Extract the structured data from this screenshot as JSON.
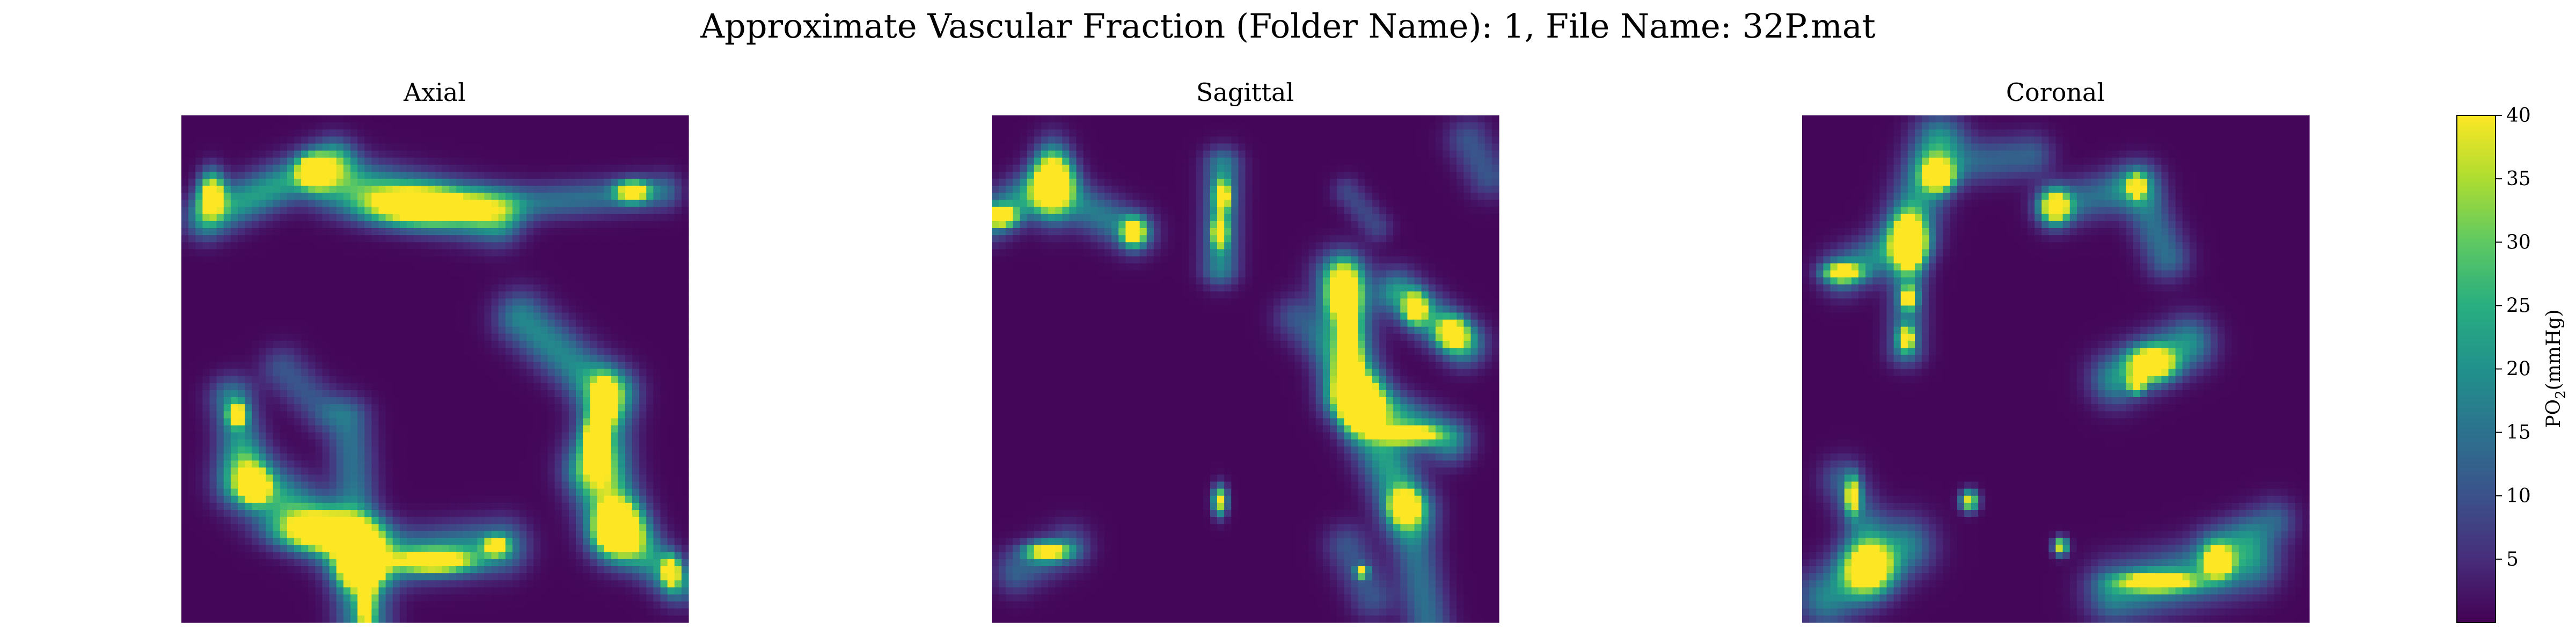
{
  "chart_data": {
    "type": "heatmap",
    "title": "Approximate Vascular Fraction (Folder Name): 1, File Name: 32P.mat",
    "colormap": "viridis",
    "colorbar": {
      "label": "PO",
      "label_sub": "2",
      "label_unit": "(mmHg)",
      "vmin": 0,
      "vmax": 40,
      "ticks": [
        5,
        10,
        15,
        20,
        25,
        30,
        35,
        40
      ]
    },
    "panels": [
      {
        "title": "Axial",
        "grid": 72,
        "blobs": [
          {
            "x": 0.06,
            "y": 0.155,
            "sx": 0.018,
            "sy": 0.03,
            "v": 44
          },
          {
            "x": 0.26,
            "y": 0.11,
            "sx": 0.02,
            "sy": 0.02,
            "v": 44
          },
          {
            "x": 0.47,
            "y": 0.18,
            "sx": 0.075,
            "sy": 0.025,
            "v": 46
          },
          {
            "x": 0.89,
            "y": 0.15,
            "sx": 0.022,
            "sy": 0.014,
            "v": 42
          },
          {
            "x": 0.11,
            "y": 0.59,
            "sx": 0.012,
            "sy": 0.015,
            "v": 42
          },
          {
            "x": 0.145,
            "y": 0.73,
            "sx": 0.018,
            "sy": 0.02,
            "v": 40
          },
          {
            "x": 0.28,
            "y": 0.82,
            "sx": 0.06,
            "sy": 0.025,
            "v": 46
          },
          {
            "x": 0.355,
            "y": 0.9,
            "sx": 0.025,
            "sy": 0.02,
            "v": 38
          },
          {
            "x": 0.365,
            "y": 0.955,
            "sx": 0.01,
            "sy": 0.04,
            "v": 40
          },
          {
            "x": 0.5,
            "y": 0.88,
            "sx": 0.05,
            "sy": 0.015,
            "v": 40
          },
          {
            "x": 0.62,
            "y": 0.85,
            "sx": 0.015,
            "sy": 0.012,
            "v": 40
          },
          {
            "x": 0.835,
            "y": 0.57,
            "sx": 0.015,
            "sy": 0.03,
            "v": 42
          },
          {
            "x": 0.815,
            "y": 0.64,
            "sx": 0.015,
            "sy": 0.03,
            "v": 42
          },
          {
            "x": 0.86,
            "y": 0.81,
            "sx": 0.03,
            "sy": 0.035,
            "v": 48
          },
          {
            "x": 0.965,
            "y": 0.9,
            "sx": 0.012,
            "sy": 0.02,
            "v": 40
          }
        ],
        "ridges": [
          {
            "x1": 0.05,
            "y1": 0.2,
            "x2": 0.3,
            "y2": 0.09,
            "w": 0.03,
            "v": 22
          },
          {
            "x1": 0.3,
            "y1": 0.13,
            "x2": 0.62,
            "y2": 0.2,
            "w": 0.035,
            "v": 24
          },
          {
            "x1": 0.6,
            "y1": 0.18,
            "x2": 0.95,
            "y2": 0.15,
            "w": 0.025,
            "v": 14
          },
          {
            "x1": 0.1,
            "y1": 0.56,
            "x2": 0.13,
            "y2": 0.72,
            "w": 0.03,
            "v": 18
          },
          {
            "x1": 0.13,
            "y1": 0.72,
            "x2": 0.35,
            "y2": 0.86,
            "w": 0.04,
            "v": 24
          },
          {
            "x1": 0.35,
            "y1": 0.86,
            "x2": 0.36,
            "y2": 1.0,
            "w": 0.035,
            "v": 22
          },
          {
            "x1": 0.36,
            "y1": 0.88,
            "x2": 0.63,
            "y2": 0.85,
            "w": 0.035,
            "v": 20
          },
          {
            "x1": 0.33,
            "y1": 0.6,
            "x2": 0.35,
            "y2": 0.85,
            "w": 0.03,
            "v": 14
          },
          {
            "x1": 0.67,
            "y1": 0.4,
            "x2": 0.84,
            "y2": 0.55,
            "w": 0.035,
            "v": 18
          },
          {
            "x1": 0.84,
            "y1": 0.55,
            "x2": 0.82,
            "y2": 0.7,
            "w": 0.035,
            "v": 22
          },
          {
            "x1": 0.82,
            "y1": 0.7,
            "x2": 0.86,
            "y2": 0.82,
            "w": 0.04,
            "v": 22
          },
          {
            "x1": 0.86,
            "y1": 0.82,
            "x2": 0.98,
            "y2": 0.92,
            "w": 0.03,
            "v": 20
          },
          {
            "x1": 0.2,
            "y1": 0.5,
            "x2": 0.28,
            "y2": 0.58,
            "w": 0.03,
            "v": 10
          }
        ]
      },
      {
        "title": "Sagittal",
        "grid": 72,
        "blobs": [
          {
            "x": 0.12,
            "y": 0.13,
            "sx": 0.025,
            "sy": 0.045,
            "v": 46
          },
          {
            "x": 0.02,
            "y": 0.2,
            "sx": 0.02,
            "sy": 0.013,
            "v": 42
          },
          {
            "x": 0.28,
            "y": 0.23,
            "sx": 0.016,
            "sy": 0.018,
            "v": 42
          },
          {
            "x": 0.455,
            "y": 0.16,
            "sx": 0.01,
            "sy": 0.02,
            "v": 40
          },
          {
            "x": 0.45,
            "y": 0.23,
            "sx": 0.01,
            "sy": 0.02,
            "v": 40
          },
          {
            "x": 0.695,
            "y": 0.35,
            "sx": 0.022,
            "sy": 0.035,
            "v": 46
          },
          {
            "x": 0.705,
            "y": 0.49,
            "sx": 0.014,
            "sy": 0.06,
            "v": 46
          },
          {
            "x": 0.73,
            "y": 0.58,
            "sx": 0.022,
            "sy": 0.03,
            "v": 44
          },
          {
            "x": 0.82,
            "y": 0.63,
            "sx": 0.04,
            "sy": 0.012,
            "v": 42
          },
          {
            "x": 0.835,
            "y": 0.38,
            "sx": 0.015,
            "sy": 0.02,
            "v": 40
          },
          {
            "x": 0.91,
            "y": 0.43,
            "sx": 0.02,
            "sy": 0.02,
            "v": 42
          },
          {
            "x": 0.45,
            "y": 0.76,
            "sx": 0.01,
            "sy": 0.02,
            "v": 40
          },
          {
            "x": 0.815,
            "y": 0.77,
            "sx": 0.018,
            "sy": 0.02,
            "v": 42
          },
          {
            "x": 0.11,
            "y": 0.86,
            "sx": 0.03,
            "sy": 0.012,
            "v": 40
          },
          {
            "x": 0.73,
            "y": 0.9,
            "sx": 0.008,
            "sy": 0.008,
            "v": 40
          }
        ],
        "ridges": [
          {
            "x1": 0.0,
            "y1": 0.2,
            "x2": 0.12,
            "y2": 0.13,
            "w": 0.03,
            "v": 20
          },
          {
            "x1": 0.12,
            "y1": 0.15,
            "x2": 0.28,
            "y2": 0.23,
            "w": 0.03,
            "v": 16
          },
          {
            "x1": 0.455,
            "y1": 0.1,
            "x2": 0.45,
            "y2": 0.3,
            "w": 0.025,
            "v": 18
          },
          {
            "x1": 0.7,
            "y1": 0.15,
            "x2": 0.76,
            "y2": 0.22,
            "w": 0.02,
            "v": 8
          },
          {
            "x1": 0.69,
            "y1": 0.32,
            "x2": 0.71,
            "y2": 0.55,
            "w": 0.035,
            "v": 24
          },
          {
            "x1": 0.71,
            "y1": 0.55,
            "x2": 0.9,
            "y2": 0.64,
            "w": 0.03,
            "v": 20
          },
          {
            "x1": 0.72,
            "y1": 0.55,
            "x2": 0.82,
            "y2": 0.78,
            "w": 0.035,
            "v": 22
          },
          {
            "x1": 0.82,
            "y1": 0.78,
            "x2": 0.86,
            "y2": 1.0,
            "w": 0.03,
            "v": 14
          },
          {
            "x1": 0.8,
            "y1": 0.35,
            "x2": 0.93,
            "y2": 0.45,
            "w": 0.03,
            "v": 22
          },
          {
            "x1": 0.6,
            "y1": 0.4,
            "x2": 0.68,
            "y2": 0.48,
            "w": 0.03,
            "v": 10
          },
          {
            "x1": 0.7,
            "y1": 0.85,
            "x2": 0.75,
            "y2": 0.95,
            "w": 0.03,
            "v": 10
          },
          {
            "x1": 0.05,
            "y1": 0.9,
            "x2": 0.15,
            "y2": 0.85,
            "w": 0.03,
            "v": 12
          },
          {
            "x1": 0.94,
            "y1": 0.05,
            "x2": 0.98,
            "y2": 0.12,
            "w": 0.03,
            "v": 10
          }
        ]
      },
      {
        "title": "Coronal",
        "grid": 72,
        "blobs": [
          {
            "x": 0.27,
            "y": 0.12,
            "sx": 0.02,
            "sy": 0.02,
            "v": 42
          },
          {
            "x": 0.21,
            "y": 0.25,
            "sx": 0.02,
            "sy": 0.035,
            "v": 46
          },
          {
            "x": 0.08,
            "y": 0.31,
            "sx": 0.025,
            "sy": 0.012,
            "v": 40
          },
          {
            "x": 0.21,
            "y": 0.36,
            "sx": 0.01,
            "sy": 0.014,
            "v": 40
          },
          {
            "x": 0.205,
            "y": 0.44,
            "sx": 0.01,
            "sy": 0.015,
            "v": 40
          },
          {
            "x": 0.5,
            "y": 0.18,
            "sx": 0.02,
            "sy": 0.022,
            "v": 44
          },
          {
            "x": 0.66,
            "y": 0.14,
            "sx": 0.01,
            "sy": 0.014,
            "v": 40
          },
          {
            "x": 0.69,
            "y": 0.49,
            "sx": 0.03,
            "sy": 0.022,
            "v": 46
          },
          {
            "x": 0.66,
            "y": 0.53,
            "sx": 0.01,
            "sy": 0.012,
            "v": 40
          },
          {
            "x": 0.1,
            "y": 0.75,
            "sx": 0.01,
            "sy": 0.025,
            "v": 40
          },
          {
            "x": 0.33,
            "y": 0.76,
            "sx": 0.012,
            "sy": 0.014,
            "v": 40
          },
          {
            "x": 0.13,
            "y": 0.89,
            "sx": 0.032,
            "sy": 0.035,
            "v": 48
          },
          {
            "x": 0.51,
            "y": 0.85,
            "sx": 0.01,
            "sy": 0.012,
            "v": 40
          },
          {
            "x": 0.7,
            "y": 0.92,
            "sx": 0.05,
            "sy": 0.012,
            "v": 42
          },
          {
            "x": 0.82,
            "y": 0.88,
            "sx": 0.018,
            "sy": 0.02,
            "v": 44
          }
        ],
        "ridges": [
          {
            "x1": 0.08,
            "y1": 0.31,
            "x2": 0.21,
            "y2": 0.25,
            "w": 0.03,
            "v": 18
          },
          {
            "x1": 0.21,
            "y1": 0.22,
            "x2": 0.27,
            "y2": 0.05,
            "w": 0.035,
            "v": 20
          },
          {
            "x1": 0.27,
            "y1": 0.1,
            "x2": 0.45,
            "y2": 0.08,
            "w": 0.03,
            "v": 12
          },
          {
            "x1": 0.21,
            "y1": 0.28,
            "x2": 0.205,
            "y2": 0.46,
            "w": 0.025,
            "v": 16
          },
          {
            "x1": 0.5,
            "y1": 0.18,
            "x2": 0.66,
            "y2": 0.14,
            "w": 0.03,
            "v": 14
          },
          {
            "x1": 0.66,
            "y1": 0.14,
            "x2": 0.72,
            "y2": 0.28,
            "w": 0.03,
            "v": 14
          },
          {
            "x1": 0.62,
            "y1": 0.52,
            "x2": 0.76,
            "y2": 0.45,
            "w": 0.035,
            "v": 20
          },
          {
            "x1": 0.08,
            "y1": 0.72,
            "x2": 0.12,
            "y2": 0.8,
            "w": 0.03,
            "v": 12
          },
          {
            "x1": 0.05,
            "y1": 0.95,
            "x2": 0.2,
            "y2": 0.85,
            "w": 0.04,
            "v": 18
          },
          {
            "x1": 0.62,
            "y1": 0.94,
            "x2": 0.88,
            "y2": 0.88,
            "w": 0.04,
            "v": 20
          },
          {
            "x1": 0.82,
            "y1": 0.85,
            "x2": 0.93,
            "y2": 0.8,
            "w": 0.03,
            "v": 12
          }
        ]
      }
    ]
  }
}
